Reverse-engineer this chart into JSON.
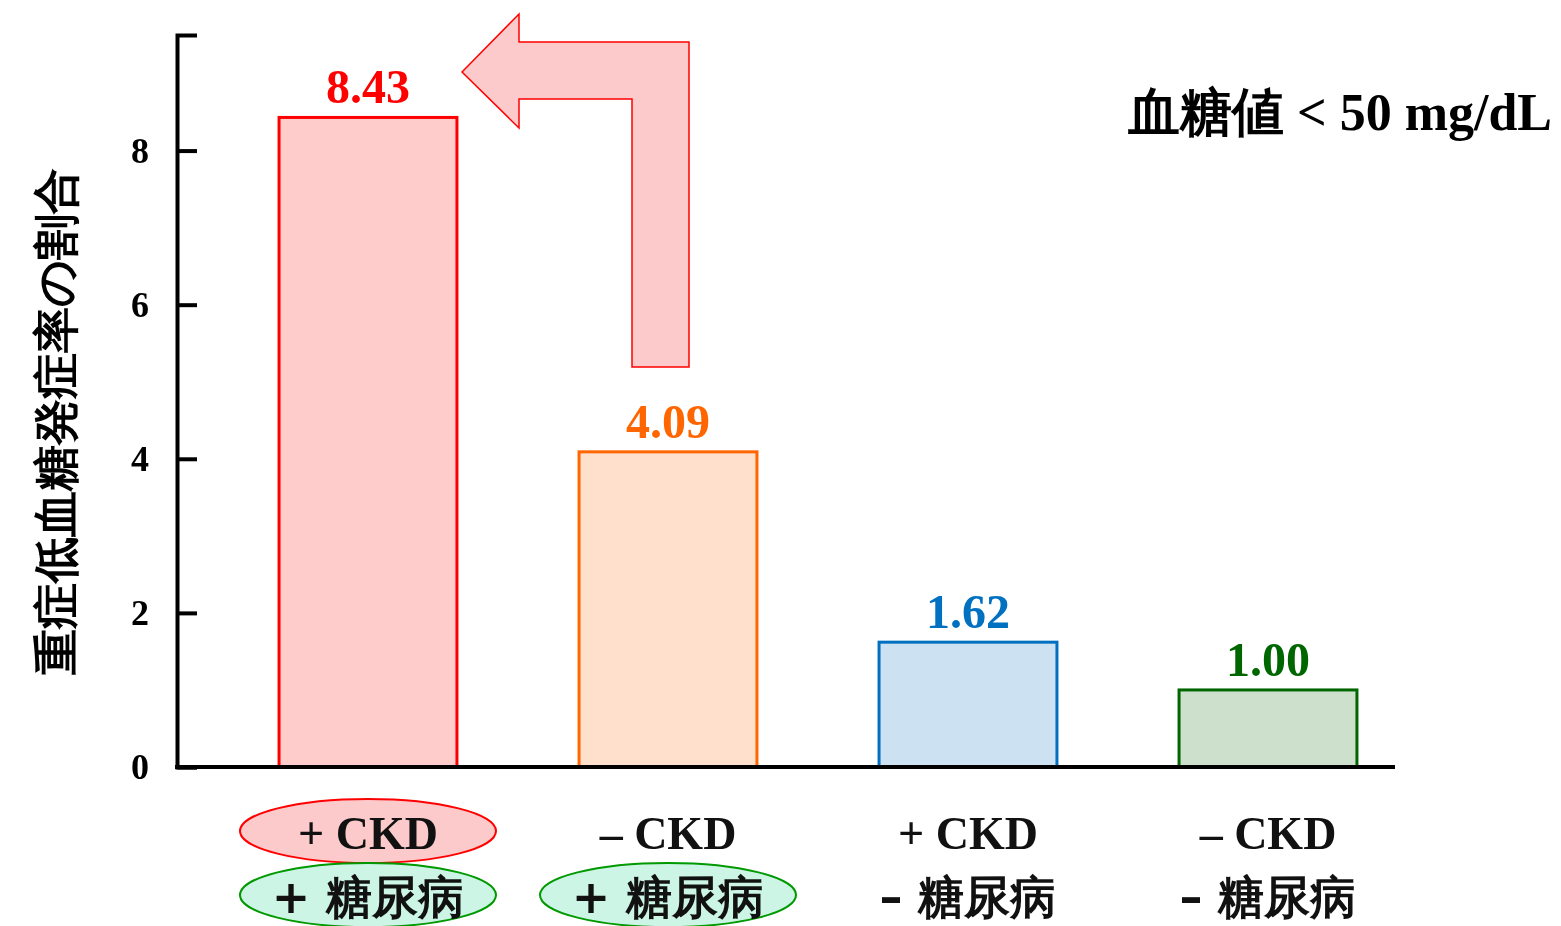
{
  "chart_data": {
    "type": "bar",
    "ylabel": "重症低血糖発症率の割合",
    "categories": [
      "+ CKD\n+ 糖尿病",
      "– CKD\n+ 糖尿病",
      "+ CKD\n– 糖尿病",
      "– CKD\n– 糖尿病"
    ],
    "values": [
      8.43,
      4.09,
      1.62,
      1.0
    ],
    "colors": [
      "#ff0000",
      "#ff6600",
      "#0070c0",
      "#006600"
    ],
    "value_labels": [
      "8.43",
      "4.09",
      "1.62",
      "1.00"
    ],
    "ylim": [
      0,
      9.5
    ],
    "yticks": [
      0,
      2,
      4,
      6,
      8
    ],
    "grid": false,
    "annotations": [
      "血糖値 < 50 mg/dL"
    ]
  }
}
